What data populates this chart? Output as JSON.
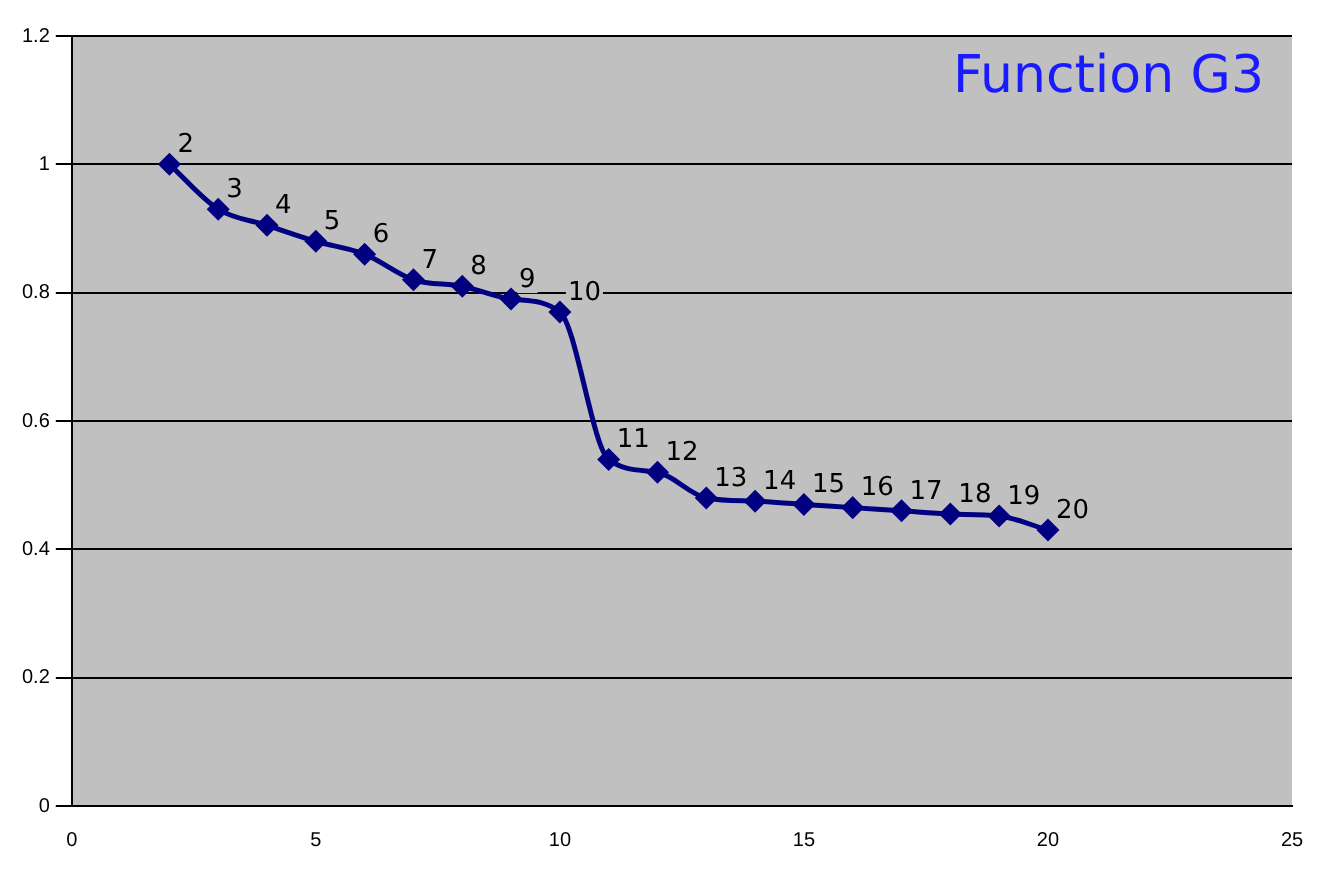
{
  "chart_data": {
    "type": "line",
    "title": "Function G3",
    "x": [
      2,
      3,
      4,
      5,
      6,
      7,
      8,
      9,
      10,
      11,
      12,
      13,
      14,
      15,
      16,
      17,
      18,
      19,
      20
    ],
    "series": [
      {
        "color": "#000080",
        "values": [
          1.0,
          0.93,
          0.905,
          0.88,
          0.86,
          0.82,
          0.81,
          0.79,
          0.77,
          0.54,
          0.52,
          0.48,
          0.475,
          0.47,
          0.465,
          0.46,
          0.455,
          0.452,
          0.43
        ]
      }
    ],
    "annotations": [
      {
        "text": "2",
        "x": 2,
        "y": 1.0
      },
      {
        "text": "3",
        "x": 3,
        "y": 0.93
      },
      {
        "text": "4",
        "x": 4,
        "y": 0.905
      },
      {
        "text": "5",
        "x": 5,
        "y": 0.88
      },
      {
        "text": "6",
        "x": 6,
        "y": 0.86
      },
      {
        "text": "7",
        "x": 7,
        "y": 0.82
      },
      {
        "text": "8",
        "x": 8,
        "y": 0.81
      },
      {
        "text": "9",
        "x": 9,
        "y": 0.79
      },
      {
        "text": "10",
        "x": 10,
        "y": 0.77
      },
      {
        "text": "11",
        "x": 11,
        "y": 0.54
      },
      {
        "text": "12",
        "x": 12,
        "y": 0.52
      },
      {
        "text": "13",
        "x": 13,
        "y": 0.48
      },
      {
        "text": "14",
        "x": 14,
        "y": 0.475
      },
      {
        "text": "15",
        "x": 15,
        "y": 0.47
      },
      {
        "text": "16",
        "x": 16,
        "y": 0.465
      },
      {
        "text": "17",
        "x": 17,
        "y": 0.46
      },
      {
        "text": "18",
        "x": 18,
        "y": 0.455
      },
      {
        "text": "19",
        "x": 19,
        "y": 0.452
      },
      {
        "text": "20",
        "x": 20,
        "y": 0.43
      }
    ],
    "xlim": [
      0,
      25
    ],
    "xticks": [
      0,
      5,
      10,
      15,
      20,
      25
    ],
    "ylim": [
      0,
      1.2
    ],
    "yticks": [
      0,
      0.2,
      0.4,
      0.6,
      0.8,
      1,
      1.2
    ],
    "grid": "y",
    "legend": false,
    "marker": "diamond",
    "line_style": "solid"
  }
}
